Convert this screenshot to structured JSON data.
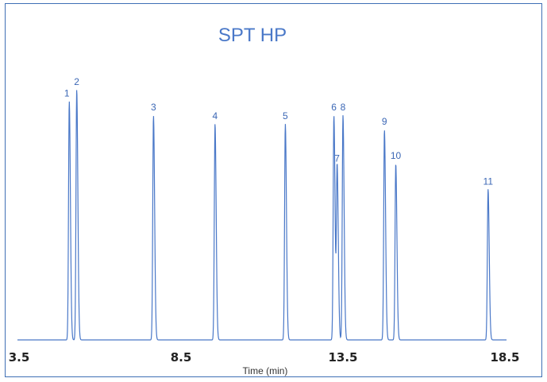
{
  "chart_data": {
    "type": "line",
    "title": "SPT HP",
    "xlabel": "Time (min)",
    "ylabel": "",
    "xlim": [
      3.5,
      18.5
    ],
    "xticks": [
      3.5,
      8.5,
      13.5,
      18.5
    ],
    "xtick_labels": [
      "3.5",
      "8.5",
      "13.5",
      "18.5"
    ],
    "grid": false,
    "line_color": "#4a78c8",
    "peaks": [
      {
        "label": "1",
        "x": 5.05,
        "height": 0.84
      },
      {
        "label": "2",
        "x": 5.28,
        "height": 0.88
      },
      {
        "label": "3",
        "x": 7.65,
        "height": 0.79
      },
      {
        "label": "4",
        "x": 9.55,
        "height": 0.76
      },
      {
        "label": "5",
        "x": 11.72,
        "height": 0.76
      },
      {
        "label": "6",
        "x": 13.22,
        "height": 0.79
      },
      {
        "label": "7",
        "x": 13.32,
        "height": 0.61
      },
      {
        "label": "8",
        "x": 13.5,
        "height": 0.79
      },
      {
        "label": "9",
        "x": 14.78,
        "height": 0.74
      },
      {
        "label": "10",
        "x": 15.13,
        "height": 0.62
      },
      {
        "label": "11",
        "x": 17.98,
        "height": 0.53
      }
    ]
  }
}
